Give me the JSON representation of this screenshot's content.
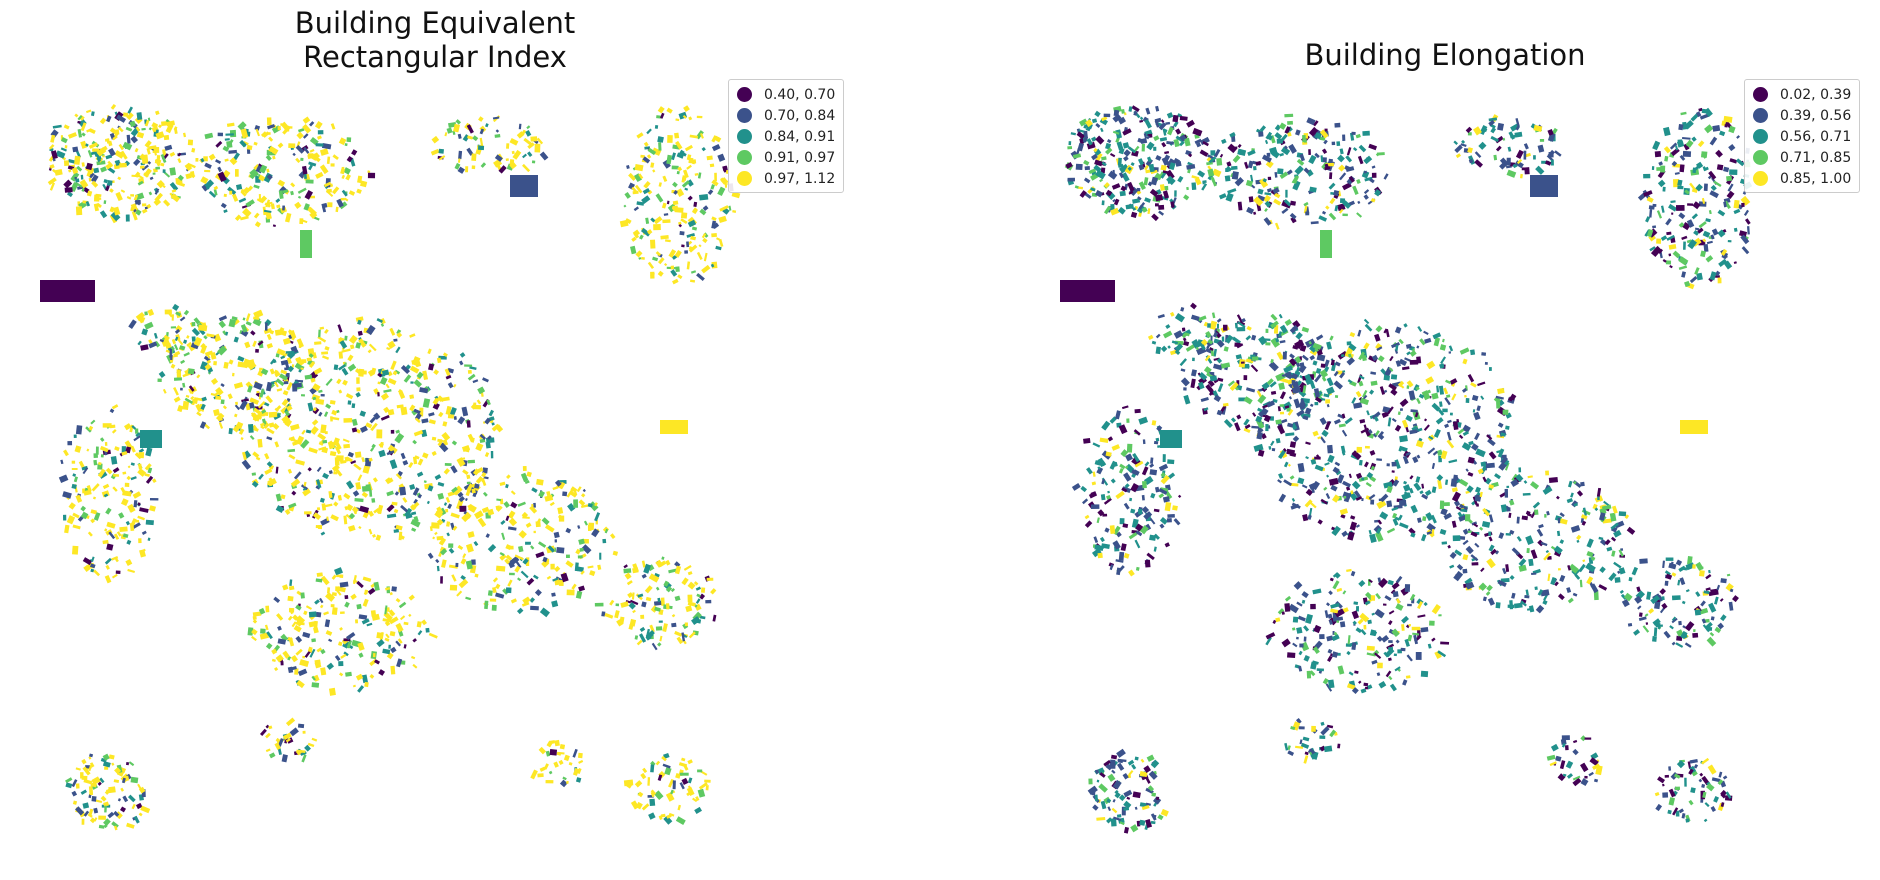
{
  "colors": [
    "#440154",
    "#3b528b",
    "#21918c",
    "#5ec962",
    "#fde725"
  ],
  "maps": [
    {
      "title_line1": "Building Equivalent",
      "title_line2": "Rectangular Index",
      "legend": [
        {
          "label": "0.40, 0.70",
          "color": "#440154"
        },
        {
          "label": "0.70, 0.84",
          "color": "#3b528b"
        },
        {
          "label": "0.84, 0.91",
          "color": "#21918c"
        },
        {
          "label": "0.91, 0.97",
          "color": "#5ec962"
        },
        {
          "label": "0.97, 1.12",
          "color": "#fde725"
        }
      ]
    },
    {
      "title_line1": "Building Elongation",
      "title_line2": "",
      "legend": [
        {
          "label": "0.02, 0.39",
          "color": "#440154"
        },
        {
          "label": "0.39, 0.56",
          "color": "#3b528b"
        },
        {
          "label": "0.56, 0.71",
          "color": "#21918c"
        },
        {
          "label": "0.71, 0.85",
          "color": "#5ec962"
        },
        {
          "label": "0.85, 1.00",
          "color": "#fde725"
        }
      ]
    }
  ]
}
